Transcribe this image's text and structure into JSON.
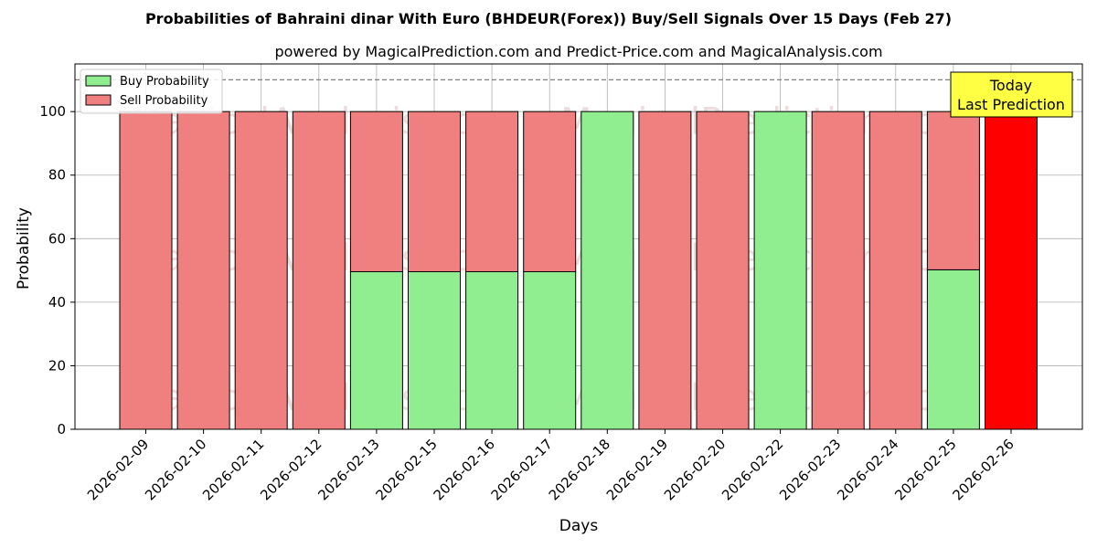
{
  "title": "Probabilities of Bahraini dinar With Euro (BHDEUR(Forex)) Buy/Sell Signals Over 15 Days (Feb 27)",
  "subtitle": "powered by MagicalPrediction.com and Predict-Price.com and MagicalAnalysis.com",
  "watermarks": [
    "MagicalAnalysis.com",
    "MagicalPrediction.com"
  ],
  "annotation": {
    "line1": "Today",
    "line2": "Last Prediction"
  },
  "colors": {
    "buy": "#90ee90",
    "sell": "#f08080",
    "today": "#ff0000",
    "annotation_bg": "#ffff44",
    "reference_line": "#808080",
    "grid": "#b0b0b0"
  },
  "chart_data": {
    "type": "bar",
    "stacked": true,
    "xlabel": "Days",
    "ylabel": "Probability",
    "ylim": [
      0,
      115
    ],
    "yticks": [
      0,
      20,
      40,
      60,
      80,
      100
    ],
    "reference_line": 110,
    "grid": true,
    "legend_position": "top-left",
    "categories": [
      "2026-02-09",
      "2026-02-10",
      "2026-02-11",
      "2026-02-12",
      "2026-02-13",
      "2026-02-15",
      "2026-02-16",
      "2026-02-17",
      "2026-02-18",
      "2026-02-19",
      "2026-02-20",
      "2026-02-22",
      "2026-02-23",
      "2026-02-24",
      "2026-02-25",
      "2026-02-26"
    ],
    "series": [
      {
        "name": "Buy Probability",
        "values": [
          0,
          0,
          0,
          0,
          49.6,
          49.6,
          49.6,
          49.6,
          100,
          0,
          0,
          100,
          0,
          0,
          50.2,
          0
        ]
      },
      {
        "name": "Sell Probability",
        "values": [
          100,
          100,
          100,
          100,
          50.4,
          50.4,
          50.4,
          50.4,
          0,
          100,
          100,
          0,
          100,
          100,
          49.8,
          100
        ]
      }
    ],
    "highlight_category": "2026-02-26"
  }
}
